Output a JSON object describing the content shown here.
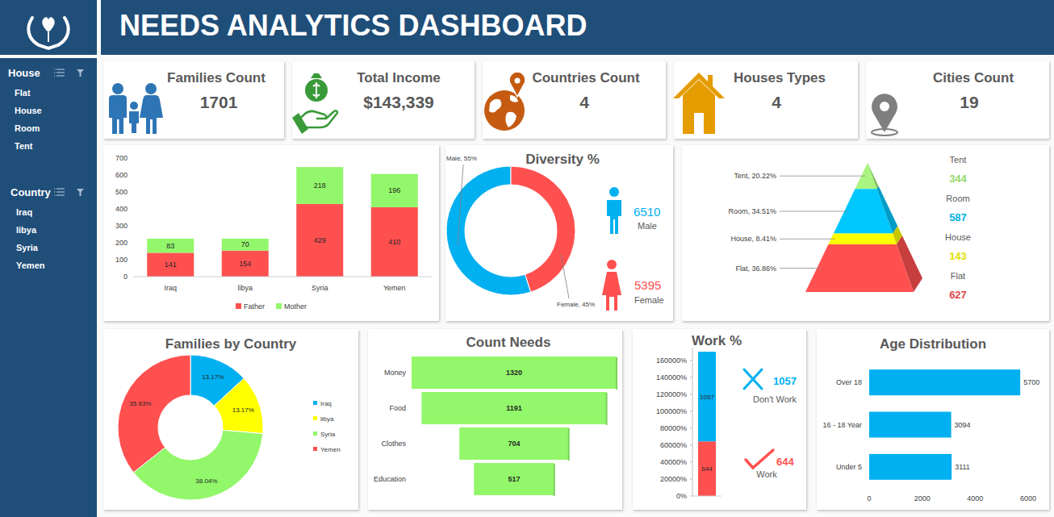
{
  "header": {
    "title": "NEEDS ANALYTICS DASHBOARD"
  },
  "sidebar": [
    {
      "title": "House",
      "items": [
        "Flat",
        "House",
        "Room",
        "Tent"
      ]
    },
    {
      "title": "Country",
      "items": [
        "Iraq",
        "libya",
        "Syria",
        "Yemen"
      ]
    }
  ],
  "kpis": [
    {
      "label": "Families Count",
      "value": "1701"
    },
    {
      "label": "Total Income",
      "value": "$143,339"
    },
    {
      "label": "Countries Count",
      "value": "4"
    },
    {
      "label": "Houses Types",
      "value": "4"
    },
    {
      "label": "Cities Count",
      "value": "19"
    }
  ],
  "chart_data": [
    {
      "type": "bar",
      "stacked": true,
      "categories": [
        "Iraq",
        "libya",
        "Syria",
        "Yemen"
      ],
      "series": [
        {
          "name": "Father",
          "color": "#ff5050",
          "values": [
            141,
            154,
            429,
            410
          ]
        },
        {
          "name": "Mother",
          "color": "#92f76a",
          "values": [
            83,
            70,
            218,
            196
          ]
        }
      ],
      "ylim": [
        0,
        700
      ],
      "yticks": [
        0,
        100,
        200,
        300,
        400,
        500,
        600,
        700
      ],
      "grid": false,
      "legend": "bottom",
      "data_labels": true
    },
    {
      "type": "donut",
      "title": "Diversity %",
      "categories": [
        "Male",
        "Female"
      ],
      "values": [
        55,
        45
      ],
      "value_labels": [
        "Male, 55%",
        "Female, 45%"
      ],
      "colors": [
        "#00b0f0",
        "#ff5050"
      ],
      "counts": [
        6510,
        5395
      ]
    },
    {
      "type": "pyramid",
      "categories": [
        "Tent",
        "Room",
        "House",
        "Flat"
      ],
      "values": [
        20.22,
        34.51,
        8.41,
        36.86
      ],
      "value_labels": [
        "Tent, 20.22%",
        "Room, 34.51%",
        "House, 8.41%",
        "Flat, 36.86%"
      ],
      "colors": [
        "#a9f57f",
        "#00c8ff",
        "#ffff00",
        "#ff5050"
      ],
      "counts": [
        344,
        587,
        143,
        627
      ]
    },
    {
      "type": "donut",
      "title": "Families by Country",
      "categories": [
        "Iraq",
        "libya",
        "Syria",
        "Yemen"
      ],
      "values": [
        13.17,
        13.17,
        38.04,
        35.63
      ],
      "value_labels": [
        "13.17%",
        "13.17%",
        "38.04%",
        "35.63%"
      ],
      "colors": [
        "#00b0f0",
        "#ffff00",
        "#92f76a",
        "#ff5050"
      ],
      "legend": "right",
      "data_labels": true
    },
    {
      "type": "funnel",
      "title": "Count Needs",
      "categories": [
        "Money",
        "Food",
        "Clothes",
        "Education"
      ],
      "values": [
        1320,
        1191,
        704,
        517
      ],
      "color": "#92f76a",
      "data_labels": true
    },
    {
      "type": "bar",
      "title": "Work %",
      "stacked": true,
      "categories": [
        null
      ],
      "series": [
        {
          "name": "Work",
          "color": "#ff5050",
          "values": [
            644
          ]
        },
        {
          "name": "Don't Work",
          "color": "#00b0f0",
          "values": [
            1057
          ]
        }
      ],
      "ylim": [
        0,
        1750
      ],
      "yticks": [
        {
          "value": 0,
          "label": "0%"
        },
        {
          "value": 200,
          "label": "20000%"
        },
        {
          "value": 400,
          "label": "40000%"
        },
        {
          "value": 600,
          "label": "60000%"
        },
        {
          "value": 800,
          "label": "80000%"
        },
        {
          "value": 1000,
          "label": "100000%"
        },
        {
          "value": 1200,
          "label": "120000%"
        },
        {
          "value": 1400,
          "label": "140000%"
        },
        {
          "value": 1600,
          "label": "160000%"
        }
      ],
      "legend": "right",
      "data_labels": true
    },
    {
      "type": "bar",
      "orientation": "horizontal",
      "title": "Age Distribution",
      "categories": [
        "Over 18",
        "16 - 18 Year",
        "Under 5"
      ],
      "values": [
        5700,
        3094,
        3111
      ],
      "color": "#00b0f0",
      "xlim": [
        0,
        6000
      ],
      "xticks": [
        0,
        2000,
        4000,
        6000
      ],
      "data_labels": true
    }
  ]
}
